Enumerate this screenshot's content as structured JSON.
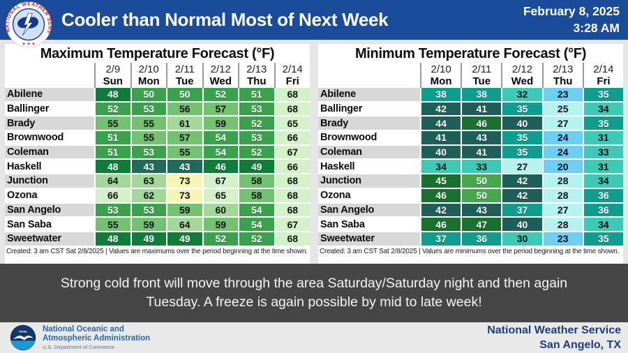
{
  "header": {
    "title": "Cooler than Normal Most of Next Week",
    "date": "February 8, 2025",
    "time": "3:28 AM",
    "bar_color": "#1b4c9c"
  },
  "chart_data": [
    {
      "type": "table",
      "title": "Maximum Temperature Forecast (°F)",
      "columns": [
        {
          "date": "2/9",
          "day": "Sun"
        },
        {
          "date": "2/10",
          "day": "Mon"
        },
        {
          "date": "2/11",
          "day": "Tue"
        },
        {
          "date": "2/12",
          "day": "Wed"
        },
        {
          "date": "2/13",
          "day": "Thu"
        },
        {
          "date": "2/14",
          "day": "Fri"
        }
      ],
      "rows": [
        {
          "city": "Abilene",
          "values": [
            48,
            50,
            50,
            52,
            51,
            68
          ]
        },
        {
          "city": "Ballinger",
          "values": [
            52,
            53,
            56,
            57,
            53,
            68
          ]
        },
        {
          "city": "Brady",
          "values": [
            55,
            55,
            61,
            59,
            52,
            65
          ]
        },
        {
          "city": "Brownwood",
          "values": [
            51,
            55,
            57,
            54,
            53,
            66
          ]
        },
        {
          "city": "Coleman",
          "values": [
            51,
            53,
            55,
            54,
            52,
            67
          ]
        },
        {
          "city": "Haskell",
          "values": [
            48,
            43,
            43,
            46,
            49,
            66
          ]
        },
        {
          "city": "Junction",
          "values": [
            64,
            63,
            73,
            67,
            58,
            68
          ]
        },
        {
          "city": "Ozona",
          "values": [
            66,
            62,
            73,
            65,
            58,
            68
          ]
        },
        {
          "city": "San Angelo",
          "values": [
            53,
            53,
            59,
            60,
            54,
            68
          ]
        },
        {
          "city": "San Saba",
          "values": [
            55,
            59,
            64,
            59,
            54,
            67
          ]
        },
        {
          "city": "Sweetwater",
          "values": [
            48,
            49,
            49,
            52,
            52,
            68
          ]
        }
      ],
      "footnote": "Created: 3 am CST Sat 2/8/2025  |  Values are maximums over the period beginning at the time shown.",
      "colorscale": [
        {
          "max": 44,
          "bg": "#1e6a5c",
          "fg": "#ffffff"
        },
        {
          "max": 49,
          "bg": "#0d7d38",
          "fg": "#ffffff"
        },
        {
          "max": 54,
          "bg": "#3aa24d",
          "fg": "#ffffff"
        },
        {
          "max": 59,
          "bg": "#72c272",
          "fg": "#111111"
        },
        {
          "max": 64,
          "bg": "#a2d898",
          "fg": "#111111"
        },
        {
          "max": 69,
          "bg": "#d3f2c8",
          "fg": "#111111"
        },
        {
          "max": 79,
          "bg": "#f6f6b4",
          "fg": "#111111"
        }
      ]
    },
    {
      "type": "table",
      "title": "Minimum Temperature Forecast (°F)",
      "columns": [
        {
          "date": "2/10",
          "day": "Mon"
        },
        {
          "date": "2/11",
          "day": "Tue"
        },
        {
          "date": "2/12",
          "day": "Wed"
        },
        {
          "date": "2/13",
          "day": "Thu"
        },
        {
          "date": "2/14",
          "day": "Fri"
        }
      ],
      "rows": [
        {
          "city": "Abilene",
          "values": [
            38,
            38,
            32,
            23,
            35
          ]
        },
        {
          "city": "Ballinger",
          "values": [
            42,
            41,
            35,
            25,
            34
          ]
        },
        {
          "city": "Brady",
          "values": [
            44,
            46,
            40,
            27,
            35
          ]
        },
        {
          "city": "Brownwood",
          "values": [
            41,
            43,
            35,
            24,
            31
          ]
        },
        {
          "city": "Coleman",
          "values": [
            40,
            41,
            35,
            24,
            33
          ]
        },
        {
          "city": "Haskell",
          "values": [
            34,
            33,
            27,
            20,
            31
          ]
        },
        {
          "city": "Junction",
          "values": [
            45,
            50,
            42,
            28,
            34
          ]
        },
        {
          "city": "Ozona",
          "values": [
            46,
            50,
            42,
            28,
            36
          ]
        },
        {
          "city": "San Angelo",
          "values": [
            42,
            43,
            37,
            27,
            36
          ]
        },
        {
          "city": "San Saba",
          "values": [
            46,
            47,
            40,
            28,
            34
          ]
        },
        {
          "city": "Sweetwater",
          "values": [
            37,
            36,
            30,
            23,
            35
          ]
        }
      ],
      "footnote": "Created: 3 am CST Sat 2/8/2025  |  Values are minimums over the period beginning at the time shown.",
      "colorscale": [
        {
          "max": 24,
          "bg": "#6cceF2",
          "fg": "#111111"
        },
        {
          "max": 29,
          "bg": "#b4f3f0",
          "fg": "#111111"
        },
        {
          "max": 34,
          "bg": "#3cc9b5",
          "fg": "#111111"
        },
        {
          "max": 39,
          "bg": "#0d9e90",
          "fg": "#ffffff"
        },
        {
          "max": 44,
          "bg": "#1e5f59",
          "fg": "#ffffff"
        },
        {
          "max": 49,
          "bg": "#17702d",
          "fg": "#ffffff"
        },
        {
          "max": 54,
          "bg": "#48a74d",
          "fg": "#ffffff"
        }
      ]
    }
  ],
  "message": {
    "line1": "Strong cold front will move through the area Saturday/Saturday night and then again",
    "line2": "Tuesday. A freeze is again possible by mid to late week!"
  },
  "footer": {
    "noaa_line1": "National Oceanic and",
    "noaa_line2": "Atmospheric Administration",
    "noaa_line3": "U.S. Department of Commerce",
    "nws_line1": "National Weather Service",
    "nws_line2": "San Angelo, TX"
  }
}
